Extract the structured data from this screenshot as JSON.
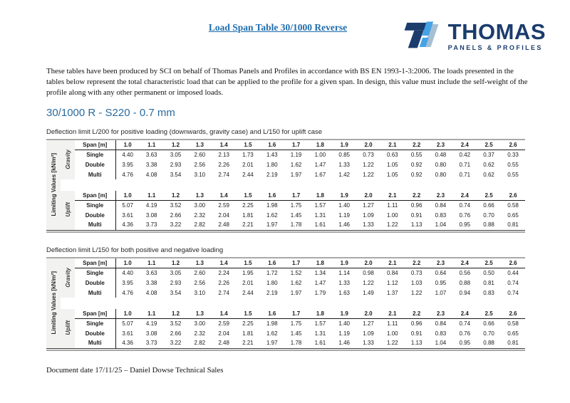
{
  "page": {
    "title": "Load Span Table 30/1000 Reverse",
    "title_color": "#1f6dad"
  },
  "logo": {
    "brand": "THOMAS",
    "subtitle": "PANELS & PROFILES",
    "icon": "thomas-t-logo",
    "colors": {
      "navy": "#1b3c6c",
      "light_blue": "#45a3e5",
      "muted_blue": "#a7bfd3"
    }
  },
  "intro_paragraph": "These tables have been produced by SCI on behalf of Thomas Panels and Profiles in accordance with BS EN 1993-1-3:2006. The loads presented in the tables below represent the total characteristic load that can be applied to the profile for a given span. In design, this value must include the self-weight of the profile along with any other permanent or imposed loads.",
  "section_heading": "30/1000 R - S220 - 0.7 mm",
  "section_heading_color": "#2b6a9e",
  "tables": [
    {
      "caption": "Deflection limit L/200 for positive loading (downwards, gravity case) and L/150 for uplift case",
      "axis_label": "Limiting Values [kN/m²]",
      "span_header": "Span [m]",
      "spans": [
        "1.0",
        "1.1",
        "1.2",
        "1.3",
        "1.4",
        "1.5",
        "1.6",
        "1.7",
        "1.8",
        "1.9",
        "2.0",
        "2.1",
        "2.2",
        "2.3",
        "2.4",
        "2.5",
        "2.6"
      ],
      "sections": [
        {
          "label": "Gravity",
          "rows": [
            {
              "label": "Single",
              "values": [
                "4.40",
                "3.63",
                "3.05",
                "2.60",
                "2.13",
                "1.73",
                "1.43",
                "1.19",
                "1.00",
                "0.85",
                "0.73",
                "0.63",
                "0.55",
                "0.48",
                "0.42",
                "0.37",
                "0.33"
              ]
            },
            {
              "label": "Double",
              "values": [
                "3.95",
                "3.38",
                "2.93",
                "2.56",
                "2.26",
                "2.01",
                "1.80",
                "1.62",
                "1.47",
                "1.33",
                "1.22",
                "1.05",
                "0.92",
                "0.80",
                "0.71",
                "0.62",
                "0.55"
              ]
            },
            {
              "label": "Multi",
              "values": [
                "4.76",
                "4.08",
                "3.54",
                "3.10",
                "2.74",
                "2.44",
                "2.19",
                "1.97",
                "1.67",
                "1.42",
                "1.22",
                "1.05",
                "0.92",
                "0.80",
                "0.71",
                "0.62",
                "0.55"
              ]
            }
          ]
        },
        {
          "label": "Uplift",
          "rows": [
            {
              "label": "Single",
              "values": [
                "5.07",
                "4.19",
                "3.52",
                "3.00",
                "2.59",
                "2.25",
                "1.98",
                "1.75",
                "1.57",
                "1.40",
                "1.27",
                "1.11",
                "0.96",
                "0.84",
                "0.74",
                "0.66",
                "0.58"
              ]
            },
            {
              "label": "Double",
              "values": [
                "3.61",
                "3.08",
                "2.66",
                "2.32",
                "2.04",
                "1.81",
                "1.62",
                "1.45",
                "1.31",
                "1.19",
                "1.09",
                "1.00",
                "0.91",
                "0.83",
                "0.76",
                "0.70",
                "0.65"
              ]
            },
            {
              "label": "Multi",
              "values": [
                "4.36",
                "3.73",
                "3.22",
                "2.82",
                "2.48",
                "2.21",
                "1.97",
                "1.78",
                "1.61",
                "1.46",
                "1.33",
                "1.22",
                "1.13",
                "1.04",
                "0.95",
                "0.88",
                "0.81"
              ]
            }
          ]
        }
      ]
    },
    {
      "caption": "Deflection limit L/150 for both positive and negative loading",
      "axis_label": "Limiting Values [kN/m²]",
      "span_header": "Span [m]",
      "spans": [
        "1.0",
        "1.1",
        "1.2",
        "1.3",
        "1.4",
        "1.5",
        "1.6",
        "1.7",
        "1.8",
        "1.9",
        "2.0",
        "2.1",
        "2.2",
        "2.3",
        "2.4",
        "2.5",
        "2.6"
      ],
      "sections": [
        {
          "label": "Gravity",
          "rows": [
            {
              "label": "Single",
              "values": [
                "4.40",
                "3.63",
                "3.05",
                "2.60",
                "2.24",
                "1.95",
                "1.72",
                "1.52",
                "1.34",
                "1.14",
                "0.98",
                "0.84",
                "0.73",
                "0.64",
                "0.56",
                "0.50",
                "0.44"
              ]
            },
            {
              "label": "Double",
              "values": [
                "3.95",
                "3.38",
                "2.93",
                "2.56",
                "2.26",
                "2.01",
                "1.80",
                "1.62",
                "1.47",
                "1.33",
                "1.22",
                "1.12",
                "1.03",
                "0.95",
                "0.88",
                "0.81",
                "0.74"
              ]
            },
            {
              "label": "Multi",
              "values": [
                "4.76",
                "4.08",
                "3.54",
                "3.10",
                "2.74",
                "2.44",
                "2.19",
                "1.97",
                "1.79",
                "1.63",
                "1.49",
                "1.37",
                "1.22",
                "1.07",
                "0.94",
                "0.83",
                "0.74"
              ]
            }
          ]
        },
        {
          "label": "Uplift",
          "rows": [
            {
              "label": "Single",
              "values": [
                "5.07",
                "4.19",
                "3.52",
                "3.00",
                "2.59",
                "2.25",
                "1.98",
                "1.75",
                "1.57",
                "1.40",
                "1.27",
                "1.11",
                "0.96",
                "0.84",
                "0.74",
                "0.66",
                "0.58"
              ]
            },
            {
              "label": "Double",
              "values": [
                "3.61",
                "3.08",
                "2.66",
                "2.32",
                "2.04",
                "1.81",
                "1.62",
                "1.45",
                "1.31",
                "1.19",
                "1.09",
                "1.00",
                "0.91",
                "0.83",
                "0.76",
                "0.70",
                "0.65"
              ]
            },
            {
              "label": "Multi",
              "values": [
                "4.36",
                "3.73",
                "3.22",
                "2.82",
                "2.48",
                "2.21",
                "1.97",
                "1.78",
                "1.61",
                "1.46",
                "1.33",
                "1.22",
                "1.13",
                "1.04",
                "0.95",
                "0.88",
                "0.81"
              ]
            }
          ]
        }
      ]
    }
  ],
  "footer": "Document date 17/11/25 – Daniel Dowse Technical Sales"
}
